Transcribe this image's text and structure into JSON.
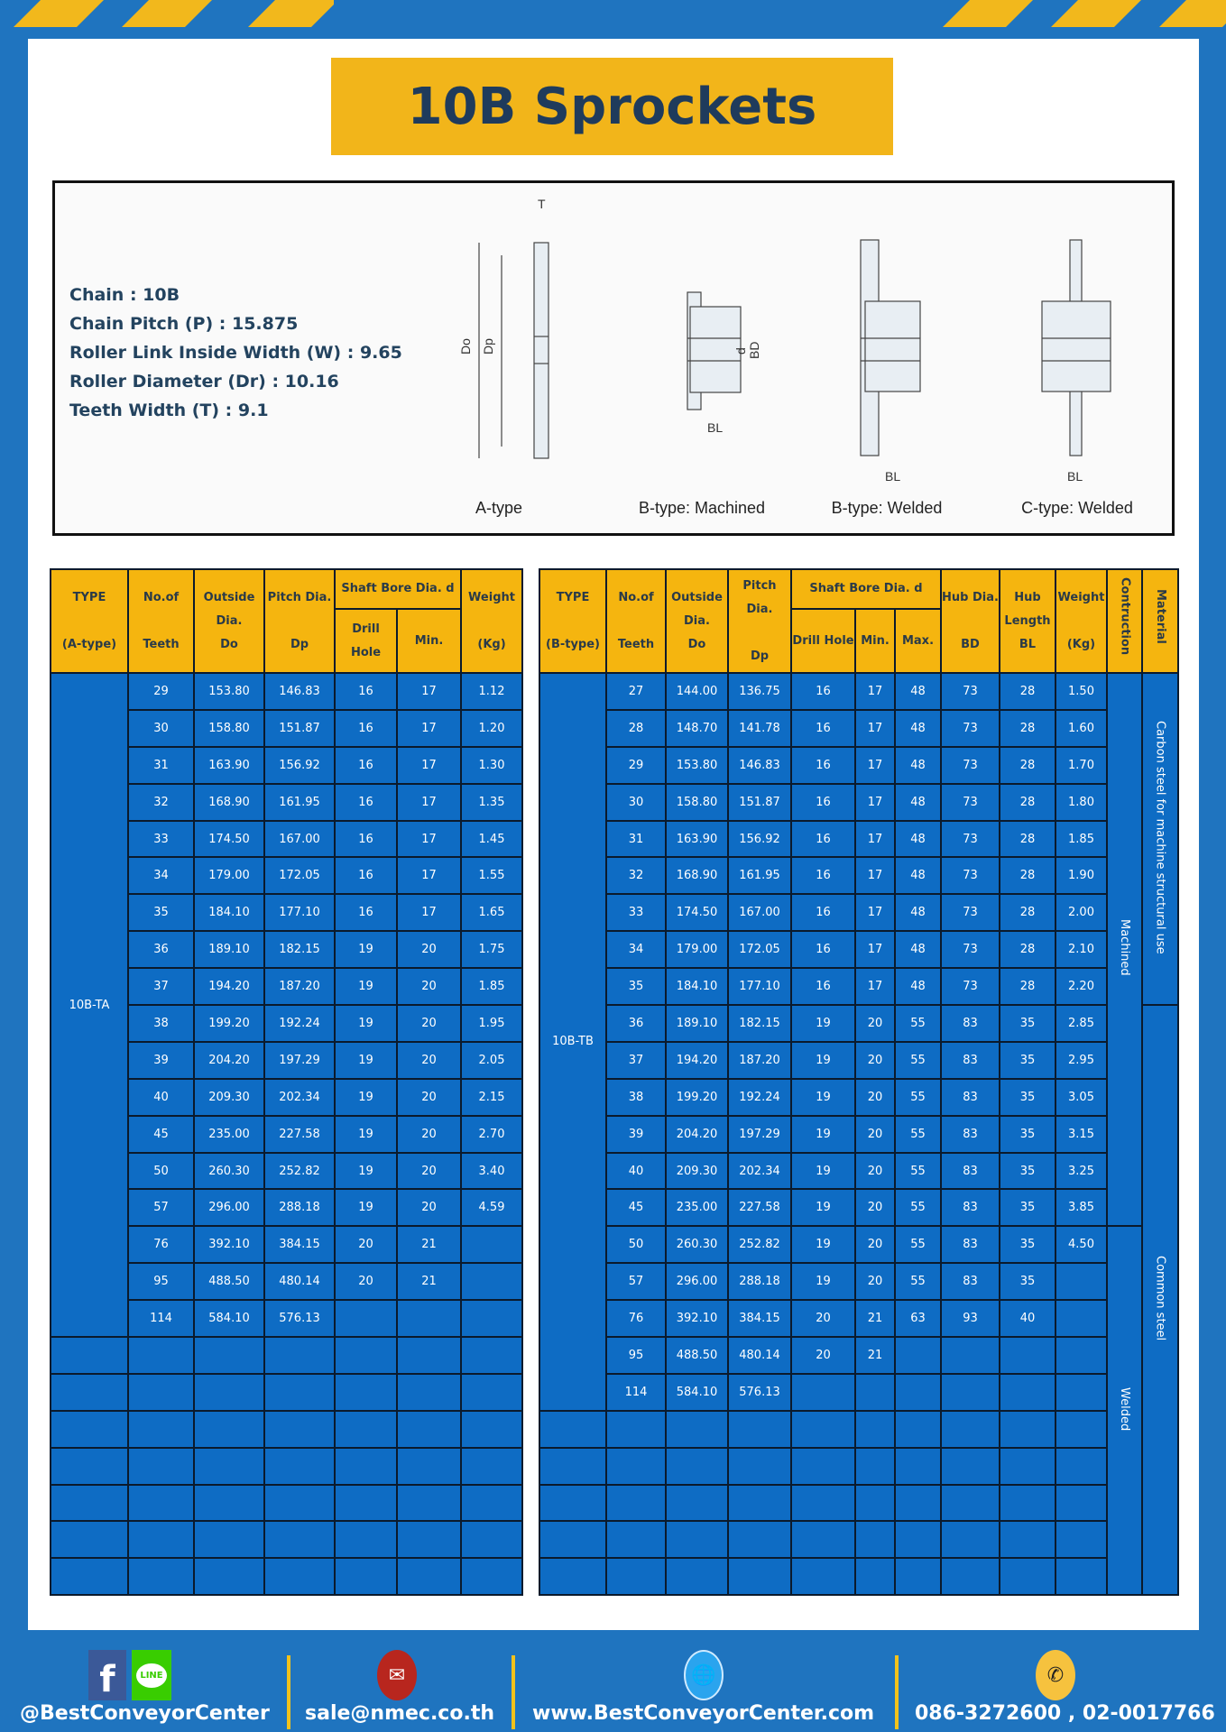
{
  "title": "10B Sprockets",
  "specs": [
    "Chain  :  10B",
    "Chain Pitch (P)  :  15.875",
    "Roller Link Inside Width (W) : 9.65",
    "Roller Diameter (Dr) : 10.16",
    "Teeth Width (T)  :  9.1"
  ],
  "diagram": {
    "types": [
      "A-type",
      "B-type: Machined",
      "B-type: Welded",
      "C-type: Welded"
    ],
    "dims": {
      "T": "T",
      "Do": "Do",
      "Dp": "Dp",
      "d": "d",
      "BD": "BD",
      "BL": "BL"
    }
  },
  "tableA": {
    "headers": {
      "type": "TYPE",
      "type_sub": "(A-type)",
      "teeth": "No.of",
      "teeth_sub": "Teeth",
      "od": "Outside",
      "od_mid": "Dia.",
      "od_sub": "Do",
      "pd": "Pitch Dia.",
      "pd_sub": "Dp",
      "bore": "Shaft Bore Dia. d",
      "drill": "Drill Hole",
      "min": "Min.",
      "weight": "Weight",
      "weight_sub": "(Kg)"
    },
    "type_value": "10B-TA",
    "rows": [
      [
        "29",
        "153.80",
        "146.83",
        "16",
        "17",
        "1.12"
      ],
      [
        "30",
        "158.80",
        "151.87",
        "16",
        "17",
        "1.20"
      ],
      [
        "31",
        "163.90",
        "156.92",
        "16",
        "17",
        "1.30"
      ],
      [
        "32",
        "168.90",
        "161.95",
        "16",
        "17",
        "1.35"
      ],
      [
        "33",
        "174.50",
        "167.00",
        "16",
        "17",
        "1.45"
      ],
      [
        "34",
        "179.00",
        "172.05",
        "16",
        "17",
        "1.55"
      ],
      [
        "35",
        "184.10",
        "177.10",
        "16",
        "17",
        "1.65"
      ],
      [
        "36",
        "189.10",
        "182.15",
        "19",
        "20",
        "1.75"
      ],
      [
        "37",
        "194.20",
        "187.20",
        "19",
        "20",
        "1.85"
      ],
      [
        "38",
        "199.20",
        "192.24",
        "19",
        "20",
        "1.95"
      ],
      [
        "39",
        "204.20",
        "197.29",
        "19",
        "20",
        "2.05"
      ],
      [
        "40",
        "209.30",
        "202.34",
        "19",
        "20",
        "2.15"
      ],
      [
        "45",
        "235.00",
        "227.58",
        "19",
        "20",
        "2.70"
      ],
      [
        "50",
        "260.30",
        "252.82",
        "19",
        "20",
        "3.40"
      ],
      [
        "57",
        "296.00",
        "288.18",
        "19",
        "20",
        "4.59"
      ],
      [
        "76",
        "392.10",
        "384.15",
        "20",
        "21",
        ""
      ],
      [
        "95",
        "488.50",
        "480.14",
        "20",
        "21",
        ""
      ],
      [
        "114",
        "584.10",
        "576.13",
        "",
        "",
        ""
      ]
    ]
  },
  "tableB": {
    "headers": {
      "type": "TYPE",
      "type_sub": "(B-type)",
      "teeth": "No.of",
      "teeth_sub": "Teeth",
      "od": "Outside",
      "od_mid": "Dia.",
      "od_sub": "Do",
      "pd": "Pitch Dia.",
      "pd_sub": "Dp",
      "bore": "Shaft Bore Dia. d",
      "drill": "Drill Hole",
      "min": "Min.",
      "max": "Max.",
      "hub": "Hub Dia.",
      "hub_sub": "BD",
      "hl": "Hub",
      "hl_mid": "Length",
      "hl_sub": "BL",
      "weight": "Weight",
      "weight_sub": "(Kg)",
      "construction": "Contruction",
      "material": "Material"
    },
    "type_value": "10B-TB",
    "construction": [
      "Machined",
      "Welded"
    ],
    "material": [
      "Carbon steel for  machine structural use",
      "Common steel"
    ],
    "rows": [
      [
        "27",
        "144.00",
        "136.75",
        "16",
        "17",
        "48",
        "73",
        "28",
        "1.50"
      ],
      [
        "28",
        "148.70",
        "141.78",
        "16",
        "17",
        "48",
        "73",
        "28",
        "1.60"
      ],
      [
        "29",
        "153.80",
        "146.83",
        "16",
        "17",
        "48",
        "73",
        "28",
        "1.70"
      ],
      [
        "30",
        "158.80",
        "151.87",
        "16",
        "17",
        "48",
        "73",
        "28",
        "1.80"
      ],
      [
        "31",
        "163.90",
        "156.92",
        "16",
        "17",
        "48",
        "73",
        "28",
        "1.85"
      ],
      [
        "32",
        "168.90",
        "161.95",
        "16",
        "17",
        "48",
        "73",
        "28",
        "1.90"
      ],
      [
        "33",
        "174.50",
        "167.00",
        "16",
        "17",
        "48",
        "73",
        "28",
        "2.00"
      ],
      [
        "34",
        "179.00",
        "172.05",
        "16",
        "17",
        "48",
        "73",
        "28",
        "2.10"
      ],
      [
        "35",
        "184.10",
        "177.10",
        "16",
        "17",
        "48",
        "73",
        "28",
        "2.20"
      ],
      [
        "36",
        "189.10",
        "182.15",
        "19",
        "20",
        "55",
        "83",
        "35",
        "2.85"
      ],
      [
        "37",
        "194.20",
        "187.20",
        "19",
        "20",
        "55",
        "83",
        "35",
        "2.95"
      ],
      [
        "38",
        "199.20",
        "192.24",
        "19",
        "20",
        "55",
        "83",
        "35",
        "3.05"
      ],
      [
        "39",
        "204.20",
        "197.29",
        "19",
        "20",
        "55",
        "83",
        "35",
        "3.15"
      ],
      [
        "40",
        "209.30",
        "202.34",
        "19",
        "20",
        "55",
        "83",
        "35",
        "3.25"
      ],
      [
        "45",
        "235.00",
        "227.58",
        "19",
        "20",
        "55",
        "83",
        "35",
        "3.85"
      ],
      [
        "50",
        "260.30",
        "252.82",
        "19",
        "20",
        "55",
        "83",
        "35",
        "4.50"
      ],
      [
        "57",
        "296.00",
        "288.18",
        "19",
        "20",
        "55",
        "83",
        "35",
        ""
      ],
      [
        "76",
        "392.10",
        "384.15",
        "20",
        "21",
        "63",
        "93",
        "40",
        ""
      ],
      [
        "95",
        "488.50",
        "480.14",
        "20",
        "21",
        "",
        "",
        "",
        ""
      ],
      [
        "114",
        "584.10",
        "576.13",
        "",
        "",
        "",
        "",
        "",
        ""
      ]
    ]
  },
  "footer": {
    "social": "@BestConveyorCenter",
    "line_icon": "LINE",
    "email": "sale@nmec.co.th",
    "website": "www.BestConveyorCenter.com",
    "phone": "086-3272600 , 02-0017766"
  },
  "colors": {
    "background": "#1f74bf",
    "header": "#f5b50f",
    "cell": "#0e6cc4",
    "title_text": "#1f3b5c"
  }
}
